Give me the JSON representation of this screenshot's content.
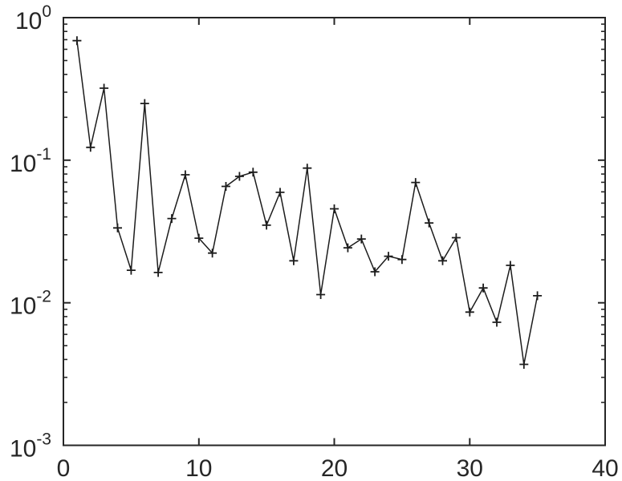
{
  "figure": {
    "background": "#ffffff"
  },
  "chart_data": {
    "type": "line",
    "yscale": "log",
    "title": "",
    "xlabel": "",
    "ylabel": "",
    "legend": null,
    "grid": false,
    "marker": "+",
    "line_color": "#1c1c1c",
    "axis_color": "#262626",
    "xlim": [
      0,
      40
    ],
    "ylim_log": [
      -3,
      0
    ],
    "xtick_values": [
      0,
      10,
      20,
      30,
      40
    ],
    "xtick_labels": [
      "0",
      "10",
      "20",
      "30",
      "40"
    ],
    "ytick_exponents": [
      0,
      -1,
      -2,
      -3
    ],
    "ytick_labels": [
      {
        "base": "10",
        "exp": "0"
      },
      {
        "base": "10",
        "exp": "-1"
      },
      {
        "base": "10",
        "exp": "-2"
      },
      {
        "base": "10",
        "exp": "-3"
      }
    ],
    "y_minor_ticks": true,
    "x": [
      1,
      2,
      3,
      4,
      5,
      6,
      7,
      8,
      9,
      10,
      11,
      12,
      13,
      14,
      15,
      16,
      17,
      18,
      19,
      20,
      21,
      22,
      23,
      24,
      25,
      26,
      27,
      28,
      29,
      30,
      31,
      32,
      33,
      34,
      35
    ],
    "y": [
      0.69,
      0.123,
      0.32,
      0.0335,
      0.0169,
      0.25,
      0.0163,
      0.039,
      0.079,
      0.0284,
      0.0223,
      0.0655,
      0.077,
      0.0824,
      0.035,
      0.0595,
      0.0197,
      0.088,
      0.0114,
      0.0456,
      0.0243,
      0.028,
      0.0165,
      0.0212,
      0.0201,
      0.0698,
      0.0363,
      0.0197,
      0.0286,
      0.0086,
      0.0127,
      0.0073,
      0.0183,
      0.0037,
      0.0112
    ]
  }
}
